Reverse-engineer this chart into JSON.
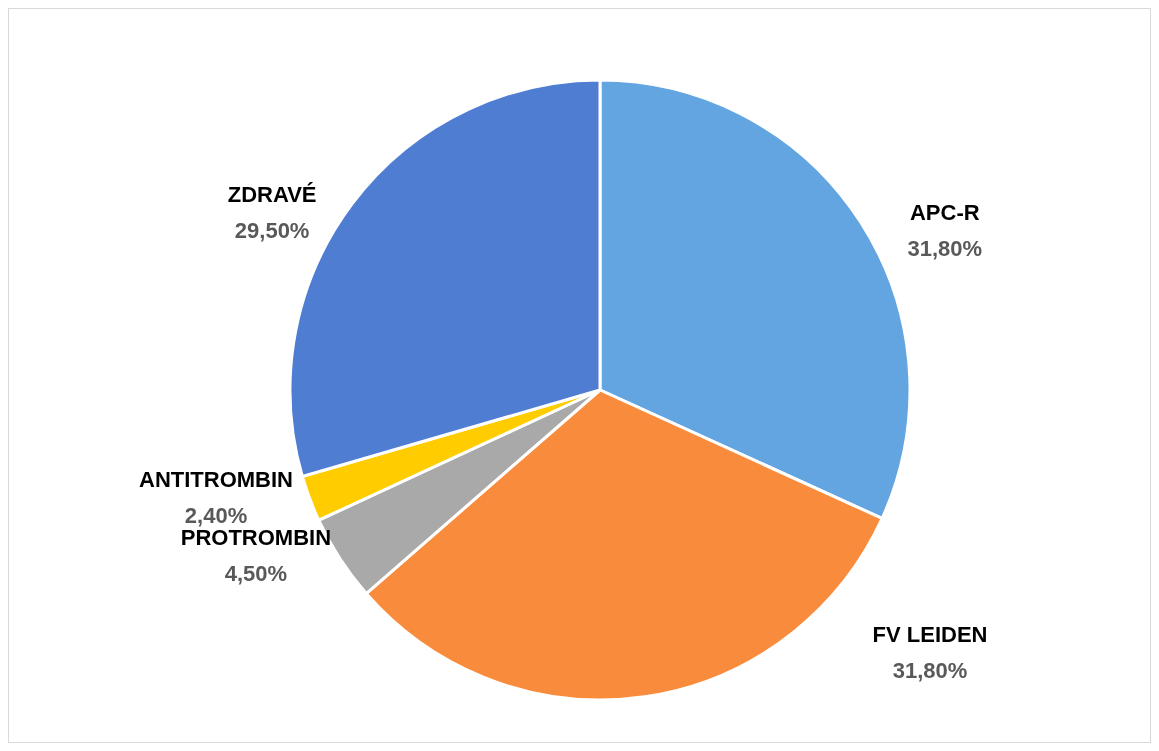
{
  "chart_data": {
    "type": "pie",
    "categories": [
      "APC-R",
      "FV LEIDEN",
      "PROTROMBIN",
      "ANTITROMBIN",
      "ZDRAVÉ"
    ],
    "values": [
      31.8,
      31.8,
      4.5,
      2.4,
      29.5
    ],
    "colors": [
      "#62a5e0",
      "#f98b3c",
      "#a9a9a9",
      "#ffcc00",
      "#4f7dd2"
    ],
    "value_labels": [
      "31,80%",
      "31,80%",
      "4,50%",
      "2,40%",
      "29,50%"
    ],
    "legend": false
  }
}
